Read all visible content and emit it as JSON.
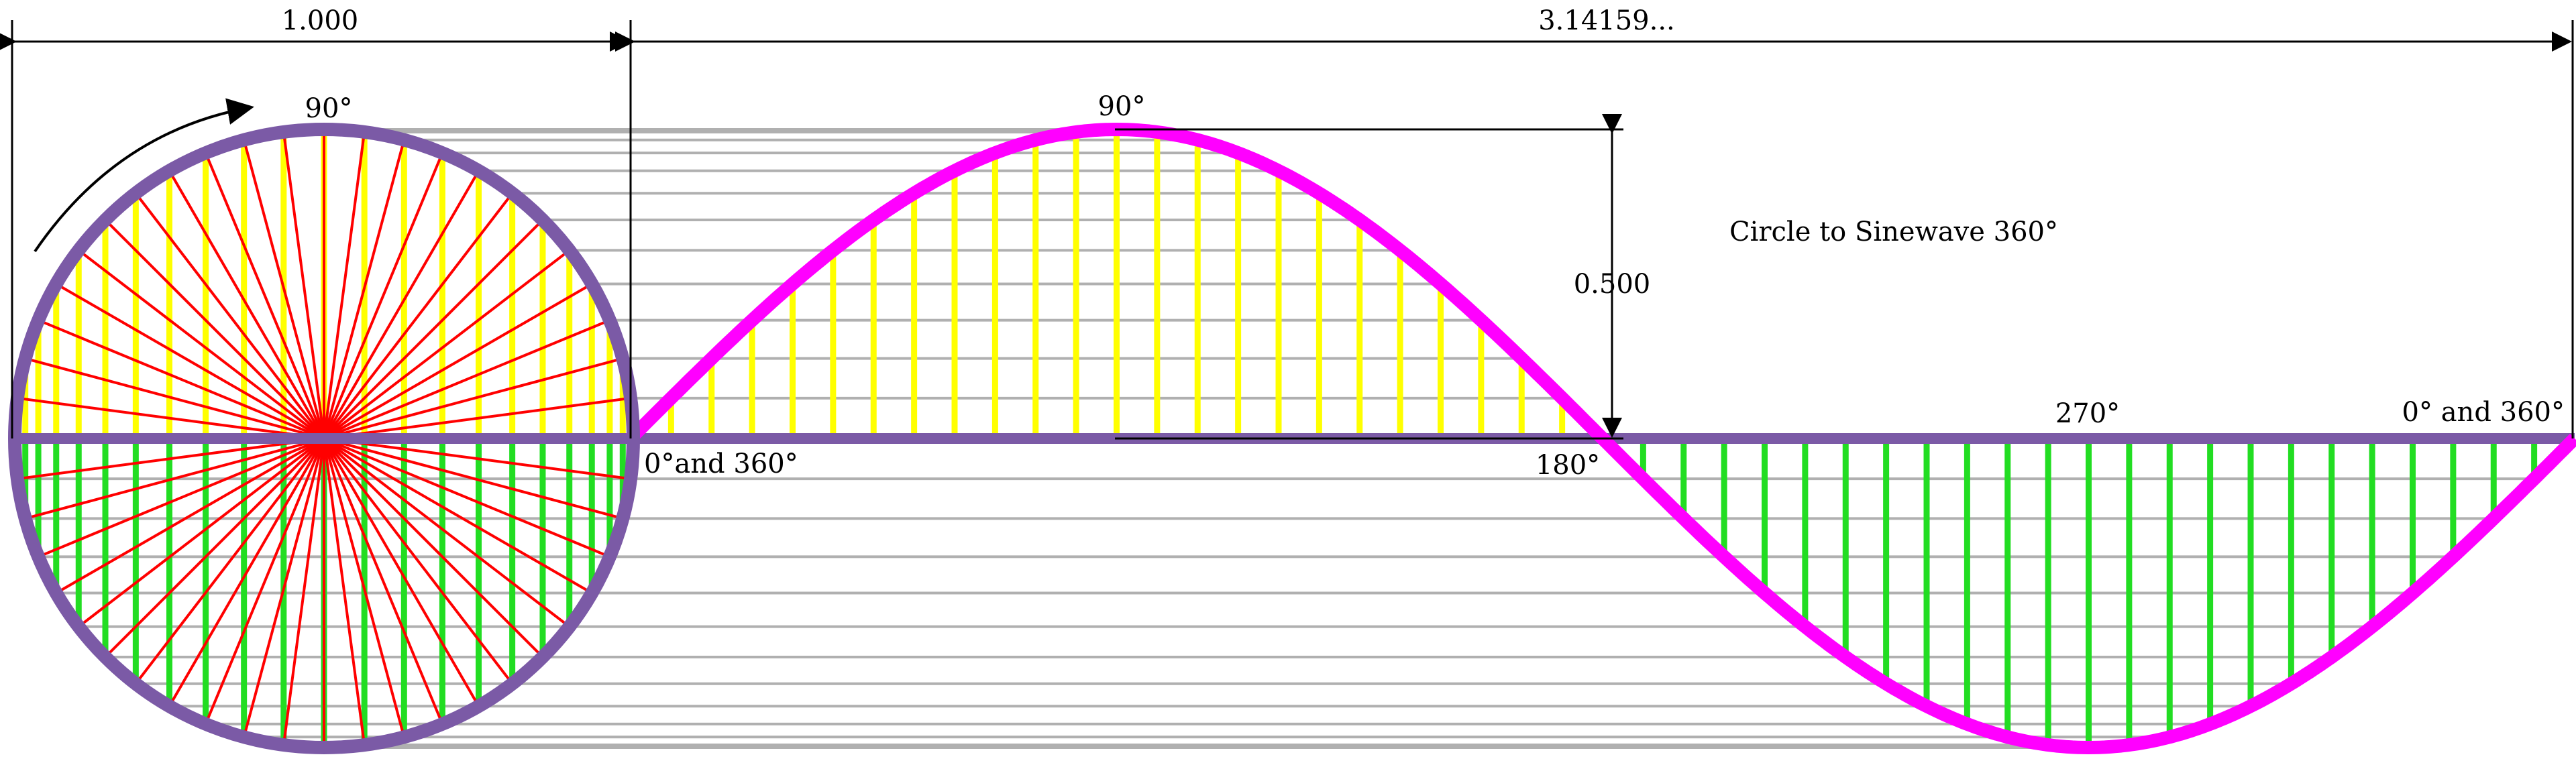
{
  "dimensions": {
    "circle_diameter_label": "1.000",
    "wave_length_label": "3.14159...",
    "amplitude_label": "0.500"
  },
  "title": "Circle to Sinewave 360°",
  "angle_labels": {
    "circle_top": "90°",
    "wave_peak": "90°",
    "origin": "0°and 360°",
    "half": "180°",
    "trough": "270°",
    "end": "0° and 360°"
  },
  "colors": {
    "circle_outline": "#7B5AA6",
    "wave": "#FF00FF",
    "positive_lines": "#FFFF00",
    "negative_lines": "#22DD22",
    "radii": "#FF0000",
    "projection_lines": "#B0B0B0",
    "dimension_lines": "#000000"
  },
  "geometry_data": {
    "angle_step_degrees": 7.5,
    "angle_range_degrees": [
      0,
      360
    ]
  }
}
